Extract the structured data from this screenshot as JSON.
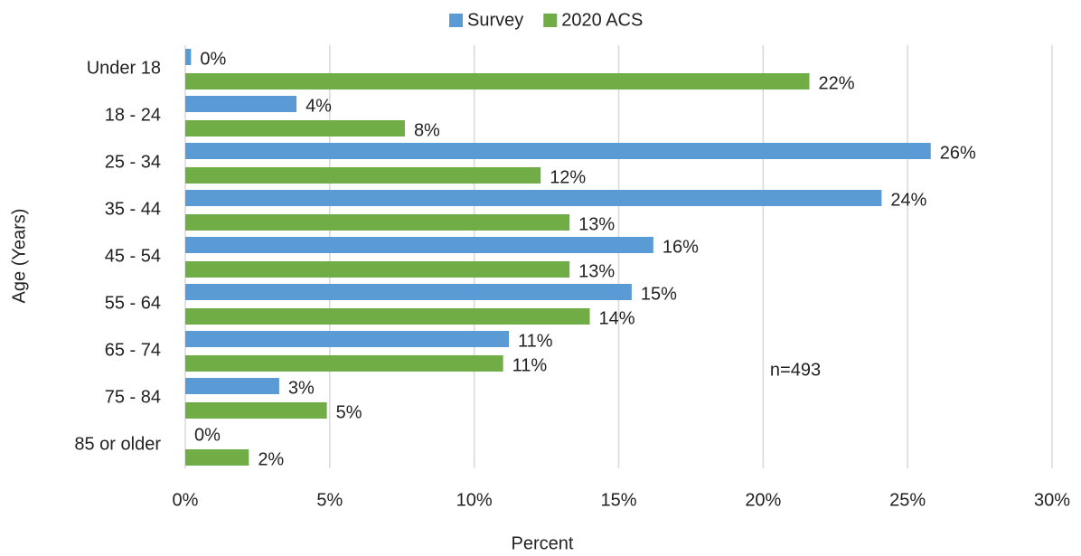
{
  "chart_data": {
    "type": "bar",
    "orientation": "horizontal",
    "categories": [
      "Under 18",
      "18 - 24",
      "25 - 34",
      "35 - 44",
      "45 - 54",
      "55 - 64",
      "65 - 74",
      "75 - 84",
      "85 or older"
    ],
    "series": [
      {
        "name": "Survey",
        "color": "#5b9bd5",
        "values": [
          0.2,
          3.85,
          25.8,
          24.1,
          16.2,
          15.45,
          11.2,
          3.25,
          0
        ],
        "value_labels": [
          "0%",
          "4%",
          "26%",
          "24%",
          "16%",
          "15%",
          "11%",
          "3%",
          "0%"
        ]
      },
      {
        "name": "2020 ACS",
        "color": "#70ad47",
        "values": [
          21.6,
          7.6,
          12.3,
          13.3,
          13.3,
          14.0,
          11.0,
          4.9,
          2.2
        ],
        "value_labels": [
          "22%",
          "8%",
          "12%",
          "13%",
          "13%",
          "14%",
          "11%",
          "5%",
          "2%"
        ]
      }
    ],
    "xlim": [
      0,
      30
    ],
    "xticks": [
      {
        "value": 0,
        "label": "0%"
      },
      {
        "value": 5,
        "label": "5%"
      },
      {
        "value": 10,
        "label": "10%"
      },
      {
        "value": 15,
        "label": "15%"
      },
      {
        "value": 20,
        "label": "20%"
      },
      {
        "value": 25,
        "label": "25%"
      },
      {
        "value": 30,
        "label": "30%"
      }
    ],
    "x_label": "Percent",
    "y_label": "Age (Years)",
    "annotation": "n=493",
    "grid": true,
    "legend": "top"
  }
}
